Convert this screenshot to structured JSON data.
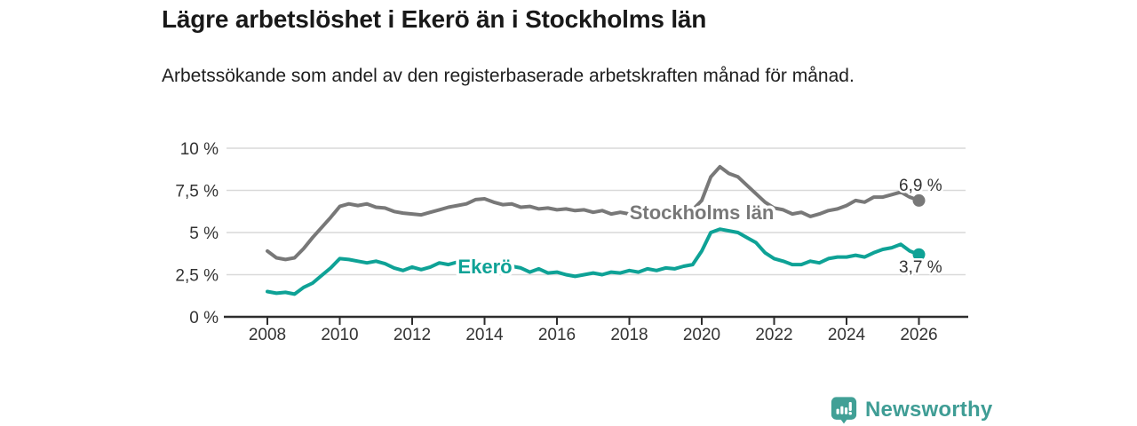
{
  "chart_data": {
    "type": "line",
    "title": "Lägre arbetslöshet i Ekerö än i Stockholms län",
    "subtitle": "Arbetssökande som andel av den registerbaserade arbetskraften månad för månad.",
    "xlabel": "",
    "ylabel": "",
    "xlim": [
      2008,
      2027.3
    ],
    "ylim": [
      0,
      10
    ],
    "grid": "horizontal",
    "legend": "inline-labels",
    "y_ticks": [
      {
        "value": 0,
        "label": "0 %"
      },
      {
        "value": 2.5,
        "label": "2,5 %"
      },
      {
        "value": 5,
        "label": "5 %"
      },
      {
        "value": 7.5,
        "label": "7,5 %"
      },
      {
        "value": 10,
        "label": "10 %"
      }
    ],
    "x_ticks": [
      {
        "value": 2008,
        "label": "2008"
      },
      {
        "value": 2010,
        "label": "2010"
      },
      {
        "value": 2012,
        "label": "2012"
      },
      {
        "value": 2014,
        "label": "2014"
      },
      {
        "value": 2016,
        "label": "2016"
      },
      {
        "value": 2018,
        "label": "2018"
      },
      {
        "value": 2020,
        "label": "2020"
      },
      {
        "value": 2022,
        "label": "2022"
      },
      {
        "value": 2024,
        "label": "2024"
      },
      {
        "value": 2026,
        "label": "2026"
      }
    ],
    "series": [
      {
        "name": "Stockholms län",
        "color": "#787878",
        "end_label": "6,9 %",
        "end_value": 6.9,
        "points": [
          [
            2008,
            3.9
          ],
          [
            2008.25,
            3.5
          ],
          [
            2008.5,
            3.4
          ],
          [
            2008.75,
            3.5
          ],
          [
            2009,
            4.05
          ],
          [
            2009.25,
            4.7
          ],
          [
            2009.5,
            5.3
          ],
          [
            2009.75,
            5.9
          ],
          [
            2010,
            6.55
          ],
          [
            2010.25,
            6.7
          ],
          [
            2010.5,
            6.6
          ],
          [
            2010.75,
            6.7
          ],
          [
            2011,
            6.5
          ],
          [
            2011.25,
            6.45
          ],
          [
            2011.5,
            6.25
          ],
          [
            2011.75,
            6.15
          ],
          [
            2012,
            6.1
          ],
          [
            2012.25,
            6.05
          ],
          [
            2012.5,
            6.2
          ],
          [
            2012.75,
            6.35
          ],
          [
            2013,
            6.5
          ],
          [
            2013.25,
            6.6
          ],
          [
            2013.5,
            6.7
          ],
          [
            2013.75,
            6.95
          ],
          [
            2014,
            7.0
          ],
          [
            2014.25,
            6.8
          ],
          [
            2014.5,
            6.65
          ],
          [
            2014.75,
            6.7
          ],
          [
            2015,
            6.5
          ],
          [
            2015.25,
            6.55
          ],
          [
            2015.5,
            6.4
          ],
          [
            2015.75,
            6.45
          ],
          [
            2016,
            6.35
          ],
          [
            2016.25,
            6.4
          ],
          [
            2016.5,
            6.3
          ],
          [
            2016.75,
            6.35
          ],
          [
            2017,
            6.2
          ],
          [
            2017.25,
            6.3
          ],
          [
            2017.5,
            6.1
          ],
          [
            2017.75,
            6.2
          ],
          [
            2018,
            6.1
          ],
          [
            2018.25,
            6.2
          ],
          [
            2018.5,
            6.15
          ],
          [
            2018.75,
            6.25
          ],
          [
            2019,
            6.2
          ],
          [
            2019.25,
            6.3
          ],
          [
            2019.5,
            6.25
          ],
          [
            2019.75,
            6.35
          ],
          [
            2020,
            6.9
          ],
          [
            2020.25,
            8.3
          ],
          [
            2020.5,
            8.9
          ],
          [
            2020.75,
            8.5
          ],
          [
            2021,
            8.3
          ],
          [
            2021.25,
            7.8
          ],
          [
            2021.5,
            7.3
          ],
          [
            2021.75,
            6.8
          ],
          [
            2022,
            6.45
          ],
          [
            2022.25,
            6.35
          ],
          [
            2022.5,
            6.1
          ],
          [
            2022.75,
            6.2
          ],
          [
            2023,
            5.95
          ],
          [
            2023.25,
            6.1
          ],
          [
            2023.5,
            6.3
          ],
          [
            2023.75,
            6.4
          ],
          [
            2024,
            6.6
          ],
          [
            2024.25,
            6.9
          ],
          [
            2024.5,
            6.8
          ],
          [
            2024.75,
            7.1
          ],
          [
            2025,
            7.1
          ],
          [
            2025.25,
            7.25
          ],
          [
            2025.5,
            7.4
          ],
          [
            2025.75,
            7.1
          ],
          [
            2026,
            6.9
          ]
        ]
      },
      {
        "name": "Ekerö",
        "color": "#0ea296",
        "end_label": "3,7 %",
        "end_value": 3.7,
        "points": [
          [
            2008,
            1.5
          ],
          [
            2008.25,
            1.4
          ],
          [
            2008.5,
            1.45
          ],
          [
            2008.75,
            1.35
          ],
          [
            2009,
            1.75
          ],
          [
            2009.25,
            2.0
          ],
          [
            2009.5,
            2.45
          ],
          [
            2009.75,
            2.9
          ],
          [
            2010,
            3.45
          ],
          [
            2010.25,
            3.4
          ],
          [
            2010.5,
            3.3
          ],
          [
            2010.75,
            3.2
          ],
          [
            2011,
            3.3
          ],
          [
            2011.25,
            3.15
          ],
          [
            2011.5,
            2.9
          ],
          [
            2011.75,
            2.75
          ],
          [
            2012,
            2.95
          ],
          [
            2012.25,
            2.8
          ],
          [
            2012.5,
            2.95
          ],
          [
            2012.75,
            3.2
          ],
          [
            2013,
            3.1
          ],
          [
            2013.25,
            3.25
          ],
          [
            2013.5,
            3.15
          ],
          [
            2013.75,
            3.1
          ],
          [
            2014,
            3.2
          ],
          [
            2014.25,
            3.15
          ],
          [
            2014.5,
            3.1
          ],
          [
            2014.75,
            3.0
          ],
          [
            2015,
            2.9
          ],
          [
            2015.25,
            2.65
          ],
          [
            2015.5,
            2.85
          ],
          [
            2015.75,
            2.6
          ],
          [
            2016,
            2.65
          ],
          [
            2016.25,
            2.5
          ],
          [
            2016.5,
            2.4
          ],
          [
            2016.75,
            2.5
          ],
          [
            2017,
            2.6
          ],
          [
            2017.25,
            2.5
          ],
          [
            2017.5,
            2.65
          ],
          [
            2017.75,
            2.6
          ],
          [
            2018,
            2.75
          ],
          [
            2018.25,
            2.65
          ],
          [
            2018.5,
            2.85
          ],
          [
            2018.75,
            2.75
          ],
          [
            2019,
            2.9
          ],
          [
            2019.25,
            2.85
          ],
          [
            2019.5,
            3.0
          ],
          [
            2019.75,
            3.1
          ],
          [
            2020,
            3.9
          ],
          [
            2020.25,
            5.0
          ],
          [
            2020.5,
            5.2
          ],
          [
            2020.75,
            5.1
          ],
          [
            2021,
            5.0
          ],
          [
            2021.25,
            4.7
          ],
          [
            2021.5,
            4.4
          ],
          [
            2021.75,
            3.8
          ],
          [
            2022,
            3.45
          ],
          [
            2022.25,
            3.3
          ],
          [
            2022.5,
            3.1
          ],
          [
            2022.75,
            3.1
          ],
          [
            2023,
            3.3
          ],
          [
            2023.25,
            3.2
          ],
          [
            2023.5,
            3.45
          ],
          [
            2023.75,
            3.55
          ],
          [
            2024,
            3.55
          ],
          [
            2024.25,
            3.65
          ],
          [
            2024.5,
            3.55
          ],
          [
            2024.75,
            3.8
          ],
          [
            2025,
            4.0
          ],
          [
            2025.25,
            4.1
          ],
          [
            2025.5,
            4.3
          ],
          [
            2025.75,
            3.9
          ],
          [
            2026,
            3.7
          ]
        ]
      }
    ]
  },
  "footer": {
    "brand": "Newsworthy"
  }
}
